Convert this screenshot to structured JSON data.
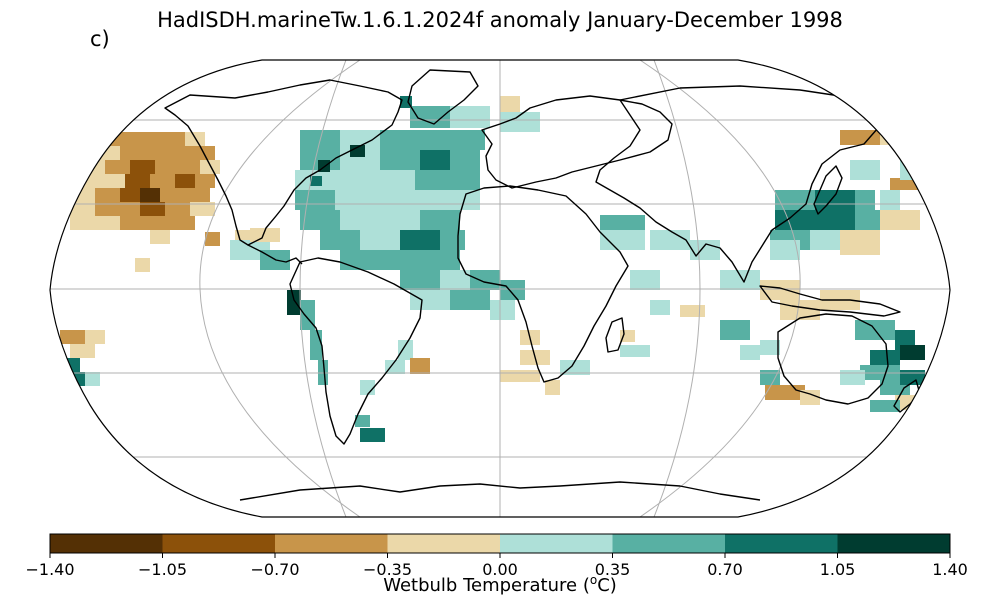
{
  "figure": {
    "title": "HadISDH.marineTw.1.6.1.2024f anomaly January-December 1998",
    "panel_label": "c)"
  },
  "colorbar": {
    "label_prefix": "Wetbulb Temperature (",
    "label_sup": "o",
    "label_suffix": "C)",
    "ticks": [
      "−1.40",
      "−1.05",
      "−0.70",
      "−0.35",
      "0.00",
      "0.35",
      "0.70",
      "1.05",
      "1.40"
    ],
    "bins": [
      {
        "from": -1.4,
        "to": -1.05,
        "color": "#543005"
      },
      {
        "from": -1.05,
        "to": -0.7,
        "color": "#8c510a"
      },
      {
        "from": -0.7,
        "to": -0.35,
        "color": "#c8954a"
      },
      {
        "from": -0.35,
        "to": 0.0,
        "color": "#ebd8a9"
      },
      {
        "from": 0.0,
        "to": 0.35,
        "color": "#aee0d8"
      },
      {
        "from": 0.35,
        "to": 0.7,
        "color": "#58b0a3"
      },
      {
        "from": 0.7,
        "to": 1.05,
        "color": "#0f7166"
      },
      {
        "from": 1.05,
        "to": 1.4,
        "color": "#003c30"
      }
    ]
  },
  "map": {
    "projection": "Robinson",
    "graticule": "on",
    "coastlines": "on",
    "ocean_background": "#ffffff",
    "grid_color": "#b0b0b0",
    "coast_color": "#000000"
  }
}
